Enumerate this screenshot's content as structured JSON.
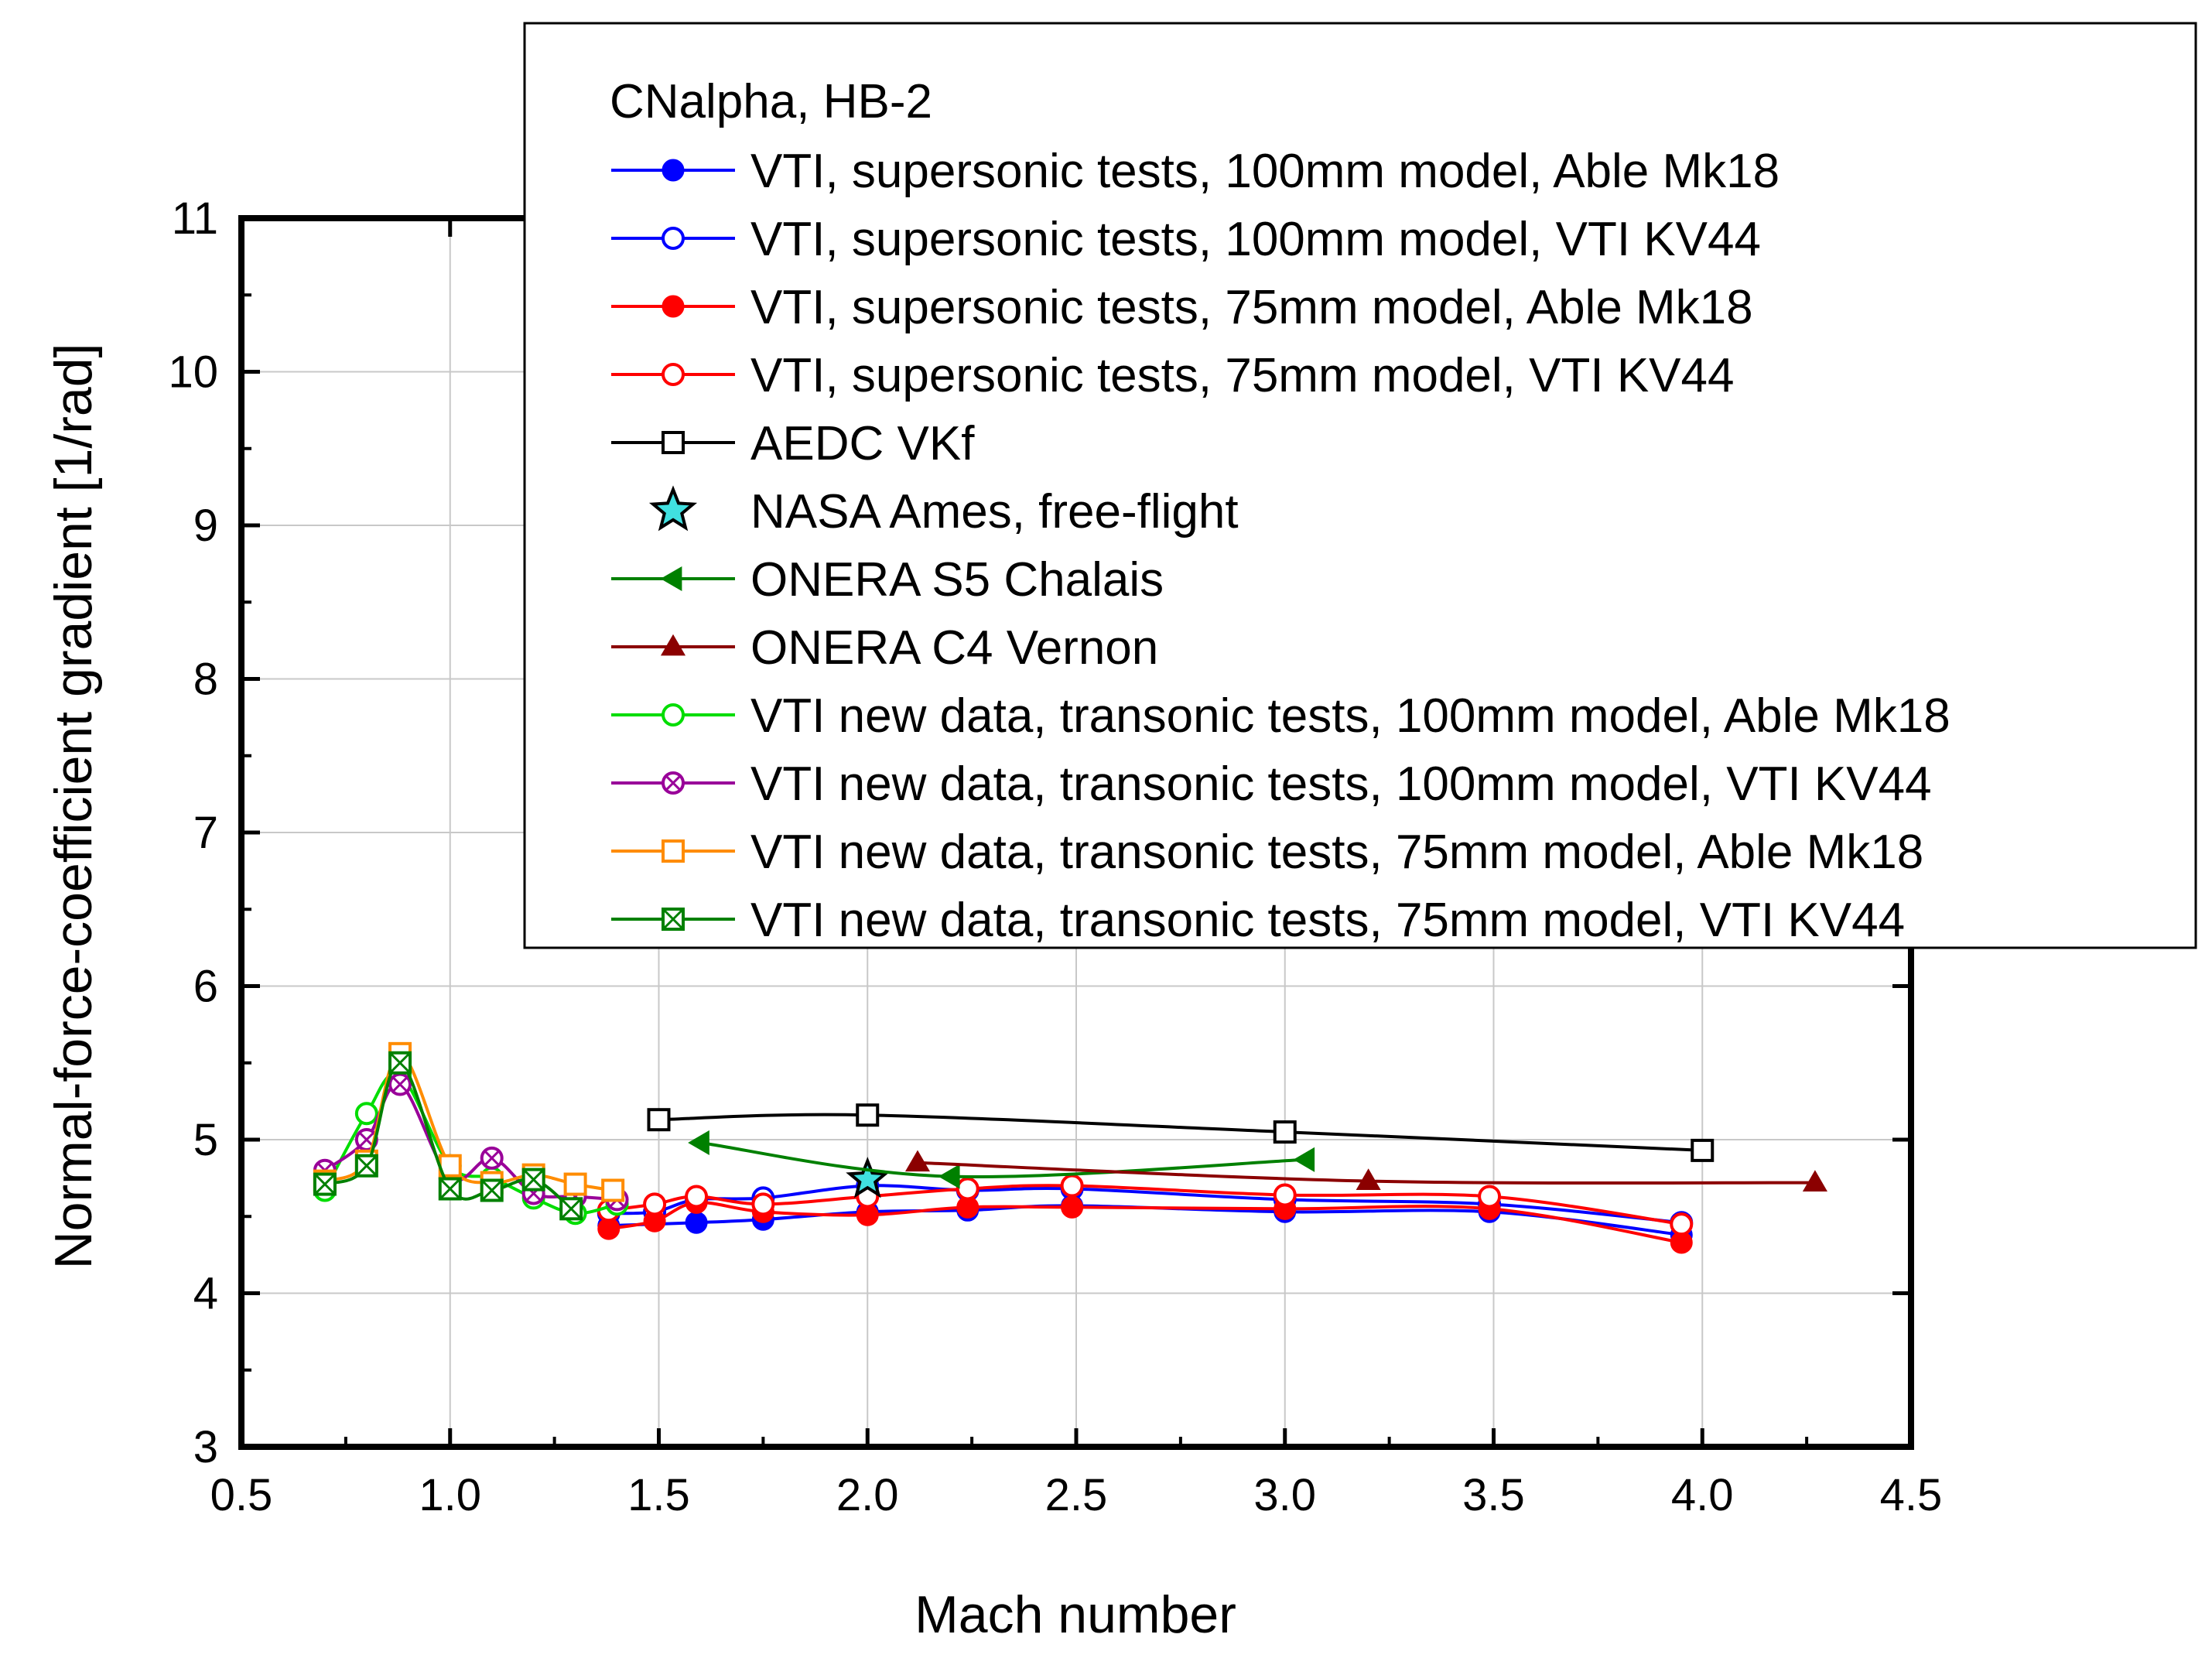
{
  "chart_data": {
    "type": "line",
    "title": "",
    "xlabel": "Mach number",
    "ylabel": "Normal-force-coefficient gradient [1/rad]",
    "xlim": [
      0.5,
      4.5
    ],
    "ylim": [
      3,
      11
    ],
    "xticks": [
      "0.5",
      "1.0",
      "1.5",
      "2.0",
      "2.5",
      "3.0",
      "3.5",
      "4.0",
      "4.5"
    ],
    "yticks": [
      "3",
      "4",
      "5",
      "6",
      "7",
      "8",
      "9",
      "10",
      "11"
    ],
    "grid": true,
    "legend": {
      "title": "CNalpha, HB-2",
      "placement": "top-right"
    },
    "series": [
      {
        "name": "VTI, supersonic tests, 100mm model, Able Mk18",
        "color": "#0000ff",
        "marker": "circle-filled",
        "x": [
          1.38,
          1.59,
          1.75,
          2.0,
          2.24,
          2.49,
          3.0,
          3.49,
          3.95
        ],
        "y": [
          4.44,
          4.46,
          4.48,
          4.53,
          4.54,
          4.57,
          4.53,
          4.53,
          4.38
        ]
      },
      {
        "name": "VTI, supersonic tests, 100mm model, VTI KV44",
        "color": "#0000ff",
        "marker": "circle-open",
        "x": [
          1.38,
          1.49,
          1.59,
          1.75,
          2.0,
          2.24,
          2.49,
          3.0,
          3.49,
          3.95
        ],
        "y": [
          4.52,
          4.53,
          4.61,
          4.62,
          4.7,
          4.67,
          4.68,
          4.61,
          4.58,
          4.46
        ]
      },
      {
        "name": "VTI, supersonic tests, 75mm model, Able Mk18",
        "color": "#ff0000",
        "marker": "circle-filled",
        "x": [
          1.38,
          1.49,
          1.59,
          1.75,
          2.0,
          2.24,
          2.49,
          3.0,
          3.49,
          3.95
        ],
        "y": [
          4.42,
          4.47,
          4.59,
          4.53,
          4.51,
          4.56,
          4.56,
          4.55,
          4.55,
          4.33
        ]
      },
      {
        "name": "VTI, supersonic tests, 75mm model, VTI KV44",
        "color": "#ff0000",
        "marker": "circle-open",
        "x": [
          1.38,
          1.49,
          1.59,
          1.75,
          2.0,
          2.24,
          2.49,
          3.0,
          3.49,
          3.95
        ],
        "y": [
          4.54,
          4.58,
          4.63,
          4.58,
          4.63,
          4.68,
          4.7,
          4.64,
          4.63,
          4.45
        ]
      },
      {
        "name": "AEDC VKf",
        "color": "#000000",
        "marker": "square-open",
        "x": [
          1.5,
          2.0,
          3.0,
          4.0
        ],
        "y": [
          5.13,
          5.16,
          5.05,
          4.93
        ]
      },
      {
        "name": "NASA Ames, free-flight",
        "color": "#40e0e0",
        "marker": "star",
        "noline": true,
        "x": [
          2.0
        ],
        "y": [
          4.74
        ]
      },
      {
        "name": "ONERA S5 Chalais",
        "color": "#008000",
        "marker": "triangle-left",
        "x": [
          1.6,
          2.2,
          3.05
        ],
        "y": [
          4.98,
          4.76,
          4.87
        ]
      },
      {
        "name": "ONERA C4 Vernon",
        "color": "#8b0000",
        "marker": "triangle-up",
        "x": [
          2.12,
          3.2,
          4.27
        ],
        "y": [
          4.85,
          4.73,
          4.72
        ]
      },
      {
        "name": "VTI new data, transonic tests, 100mm model, Able Mk18",
        "color": "#00dd00",
        "marker": "circle-open",
        "x": [
          0.7,
          0.8,
          0.88,
          1.0,
          1.1,
          1.2,
          1.3,
          1.4
        ],
        "y": [
          4.67,
          5.17,
          5.42,
          4.83,
          4.75,
          4.62,
          4.52,
          4.58
        ]
      },
      {
        "name": "VTI new data, transonic tests, 100mm model, VTI KV44",
        "color": "#990099",
        "marker": "circle-x",
        "x": [
          0.7,
          0.8,
          0.88,
          1.0,
          1.1,
          1.2,
          1.3,
          1.4
        ],
        "y": [
          4.8,
          5.0,
          5.36,
          4.75,
          4.88,
          4.65,
          4.63,
          4.61
        ]
      },
      {
        "name": "VTI new data, transonic tests, 75mm model, Able Mk18",
        "color": "#ff8c00",
        "marker": "square-open",
        "x": [
          0.7,
          0.8,
          0.88,
          1.0,
          1.1,
          1.2,
          1.3,
          1.39
        ],
        "y": [
          4.73,
          4.86,
          5.56,
          4.83,
          4.72,
          4.77,
          4.71,
          4.67
        ]
      },
      {
        "name": "VTI new data, transonic tests, 75mm model, VTI KV44",
        "color": "#008000",
        "marker": "square-x",
        "x": [
          0.7,
          0.8,
          0.88,
          1.0,
          1.1,
          1.2,
          1.29
        ],
        "y": [
          4.71,
          4.83,
          5.5,
          4.68,
          4.67,
          4.74,
          4.55
        ]
      }
    ]
  }
}
